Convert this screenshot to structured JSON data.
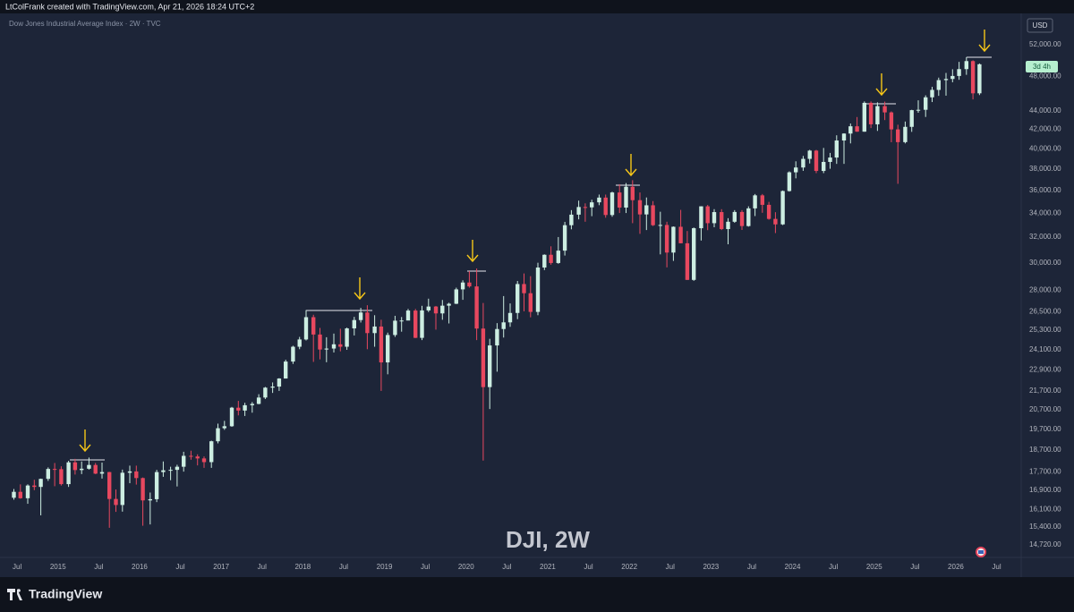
{
  "chart_data": {
    "type": "candlestick",
    "credit": "LtColFrank created with TradingView.com, Apr 21, 2026 18:24 UTC+2",
    "title": "Dow Jones Industrial Average Index · 2W · TVC",
    "annotation": "DJI, 2W",
    "currency": "USD",
    "countdown": "3d 4h",
    "brand": "TradingView",
    "log_scale": true,
    "grid": false,
    "up_color": "#cdeee2",
    "down_color": "#e8485f",
    "xlim": [
      2014.29,
      2026.79
    ],
    "ylim": [
      14295,
      56150
    ],
    "xticks": [
      {
        "value": 2014.5,
        "label": "Jul"
      },
      {
        "value": 2015,
        "label": "2015"
      },
      {
        "value": 2015.5,
        "label": "Jul"
      },
      {
        "value": 2016,
        "label": "2016"
      },
      {
        "value": 2016.5,
        "label": "Jul"
      },
      {
        "value": 2017,
        "label": "2017"
      },
      {
        "value": 2017.5,
        "label": "Jul"
      },
      {
        "value": 2018,
        "label": "2018"
      },
      {
        "value": 2018.5,
        "label": "Jul"
      },
      {
        "value": 2019,
        "label": "2019"
      },
      {
        "value": 2019.5,
        "label": "Jul"
      },
      {
        "value": 2020,
        "label": "2020"
      },
      {
        "value": 2020.5,
        "label": "Jul"
      },
      {
        "value": 2021,
        "label": "2021"
      },
      {
        "value": 2021.5,
        "label": "Jul"
      },
      {
        "value": 2022,
        "label": "2022"
      },
      {
        "value": 2022.5,
        "label": "Jul"
      },
      {
        "value": 2023,
        "label": "2023"
      },
      {
        "value": 2023.5,
        "label": "Jul"
      },
      {
        "value": 2024,
        "label": "2024"
      },
      {
        "value": 2024.5,
        "label": "Jul"
      },
      {
        "value": 2025,
        "label": "2025"
      },
      {
        "value": 2025.5,
        "label": "Jul"
      },
      {
        "value": 2026,
        "label": "2026"
      },
      {
        "value": 2026.5,
        "label": "Jul"
      }
    ],
    "yticks": [
      {
        "value": 52000,
        "label": "52,000.00"
      },
      {
        "value": 48000,
        "label": "48,000.00"
      },
      {
        "value": 44000,
        "label": "44,000.00"
      },
      {
        "value": 42000,
        "label": "42,000.00"
      },
      {
        "value": 40000,
        "label": "40,000.00"
      },
      {
        "value": 38000,
        "label": "38,000.00"
      },
      {
        "value": 36000,
        "label": "36,000.00"
      },
      {
        "value": 34000,
        "label": "34,000.00"
      },
      {
        "value": 32000,
        "label": "32,000.00"
      },
      {
        "value": 30000,
        "label": "30,000.00"
      },
      {
        "value": 28000,
        "label": "28,000.00"
      },
      {
        "value": 26500,
        "label": "26,500.00"
      },
      {
        "value": 25300,
        "label": "25,300.00"
      },
      {
        "value": 24100,
        "label": "24,100.00"
      },
      {
        "value": 22900,
        "label": "22,900.00"
      },
      {
        "value": 21700,
        "label": "21,700.00"
      },
      {
        "value": 20700,
        "label": "20,700.00"
      },
      {
        "value": 19700,
        "label": "19,700.00"
      },
      {
        "value": 18700,
        "label": "18,700.00"
      },
      {
        "value": 17700,
        "label": "17,700.00"
      },
      {
        "value": 16900,
        "label": "16,900.00"
      },
      {
        "value": 16100,
        "label": "16,100.00"
      },
      {
        "value": 15400,
        "label": "15,400.00"
      },
      {
        "value": 14720,
        "label": "14,720.00"
      }
    ],
    "x": [
      2014.46,
      2014.54,
      2014.63,
      2014.71,
      2014.79,
      2014.88,
      2014.96,
      2015.04,
      2015.13,
      2015.21,
      2015.29,
      2015.38,
      2015.46,
      2015.54,
      2015.63,
      2015.71,
      2015.79,
      2015.88,
      2015.96,
      2016.04,
      2016.13,
      2016.21,
      2016.29,
      2016.38,
      2016.46,
      2016.54,
      2016.63,
      2016.71,
      2016.79,
      2016.88,
      2016.96,
      2017.04,
      2017.13,
      2017.21,
      2017.29,
      2017.38,
      2017.46,
      2017.54,
      2017.63,
      2017.71,
      2017.79,
      2017.88,
      2017.96,
      2018.04,
      2018.13,
      2018.21,
      2018.29,
      2018.38,
      2018.46,
      2018.54,
      2018.63,
      2018.71,
      2018.79,
      2018.88,
      2018.96,
      2019.04,
      2019.13,
      2019.21,
      2019.29,
      2019.38,
      2019.46,
      2019.54,
      2019.63,
      2019.71,
      2019.79,
      2019.88,
      2019.96,
      2020.04,
      2020.13,
      2020.21,
      2020.29,
      2020.38,
      2020.46,
      2020.54,
      2020.63,
      2020.71,
      2020.79,
      2020.88,
      2020.96,
      2021.04,
      2021.13,
      2021.21,
      2021.29,
      2021.38,
      2021.46,
      2021.54,
      2021.63,
      2021.71,
      2021.79,
      2021.88,
      2021.96,
      2022.04,
      2022.13,
      2022.21,
      2022.29,
      2022.38,
      2022.46,
      2022.54,
      2022.63,
      2022.71,
      2022.79,
      2022.88,
      2022.96,
      2023.04,
      2023.13,
      2023.21,
      2023.29,
      2023.38,
      2023.46,
      2023.54,
      2023.63,
      2023.71,
      2023.79,
      2023.88,
      2023.96,
      2024.04,
      2024.13,
      2024.21,
      2024.29,
      2024.38,
      2024.46,
      2024.54,
      2024.63,
      2024.71,
      2024.79,
      2024.88,
      2024.96,
      2025.04,
      2025.13,
      2025.21,
      2025.29,
      2025.38,
      2025.46,
      2025.54,
      2025.63,
      2025.71,
      2025.79,
      2025.88,
      2025.96,
      2026.04,
      2026.13,
      2026.21,
      2026.29
    ],
    "ohlc": [
      [
        16580,
        16950,
        16500,
        16830
      ],
      [
        16830,
        17150,
        16540,
        16560
      ],
      [
        16560,
        17150,
        16330,
        17100
      ],
      [
        17100,
        17350,
        16900,
        17040
      ],
      [
        17040,
        17400,
        15860,
        17390
      ],
      [
        17390,
        17900,
        17300,
        17830
      ],
      [
        17830,
        18100,
        17070,
        17820
      ],
      [
        17820,
        17950,
        17100,
        17160
      ],
      [
        17160,
        18200,
        17040,
        18130
      ],
      [
        18130,
        18290,
        17580,
        17780
      ],
      [
        17780,
        18170,
        17600,
        17840
      ],
      [
        17840,
        18350,
        17800,
        18010
      ],
      [
        18010,
        18100,
        17600,
        17620
      ],
      [
        17620,
        18120,
        17400,
        17690
      ],
      [
        17690,
        17700,
        15370,
        16530
      ],
      [
        16530,
        16930,
        16000,
        16280
      ],
      [
        16280,
        17800,
        16010,
        17660
      ],
      [
        17660,
        17980,
        17200,
        17720
      ],
      [
        17720,
        17980,
        17140,
        17425
      ],
      [
        17425,
        17450,
        15450,
        16470
      ],
      [
        16470,
        16800,
        15500,
        16520
      ],
      [
        16520,
        17790,
        16400,
        17690
      ],
      [
        17690,
        18170,
        17480,
        17770
      ],
      [
        17770,
        17930,
        17330,
        17790
      ],
      [
        17790,
        18020,
        17060,
        17930
      ],
      [
        17930,
        18620,
        17710,
        18430
      ],
      [
        18430,
        18670,
        18250,
        18400
      ],
      [
        18400,
        18500,
        17990,
        18310
      ],
      [
        18310,
        18400,
        17880,
        18140
      ],
      [
        18140,
        19150,
        17880,
        19120
      ],
      [
        19120,
        19990,
        19020,
        19760
      ],
      [
        19760,
        20130,
        19680,
        19860
      ],
      [
        19860,
        20850,
        19830,
        20810
      ],
      [
        20810,
        21170,
        20410,
        20660
      ],
      [
        20660,
        21070,
        20380,
        20940
      ],
      [
        20940,
        21110,
        20550,
        21010
      ],
      [
        21010,
        21530,
        20990,
        21350
      ],
      [
        21350,
        21930,
        21270,
        21890
      ],
      [
        21890,
        22180,
        21600,
        21950
      ],
      [
        21950,
        22420,
        21710,
        22400
      ],
      [
        22400,
        23490,
        22400,
        23380
      ],
      [
        23380,
        24330,
        23240,
        24270
      ],
      [
        24270,
        24880,
        24120,
        24720
      ],
      [
        24720,
        26620,
        24660,
        26150
      ],
      [
        26150,
        26310,
        23360,
        25030
      ],
      [
        25030,
        25450,
        23510,
        24100
      ],
      [
        24100,
        24860,
        23340,
        24160
      ],
      [
        24160,
        25090,
        23920,
        24420
      ],
      [
        24420,
        25400,
        23990,
        24270
      ],
      [
        24270,
        25470,
        24080,
        25420
      ],
      [
        25420,
        26170,
        24970,
        25960
      ],
      [
        25960,
        26770,
        25800,
        26460
      ],
      [
        26460,
        26950,
        24120,
        25120
      ],
      [
        25120,
        26280,
        24270,
        25540
      ],
      [
        25540,
        25980,
        21710,
        23330
      ],
      [
        23330,
        25150,
        22640,
        25000
      ],
      [
        25000,
        26240,
        24880,
        25920
      ],
      [
        25920,
        26160,
        25210,
        25930
      ],
      [
        25930,
        26700,
        25970,
        26590
      ],
      [
        26590,
        26700,
        24810,
        24820
      ],
      [
        24820,
        26910,
        24680,
        26600
      ],
      [
        26600,
        27400,
        26490,
        26860
      ],
      [
        26860,
        26900,
        25340,
        26400
      ],
      [
        26400,
        27310,
        25980,
        26920
      ],
      [
        26920,
        27120,
        25740,
        27050
      ],
      [
        27050,
        28170,
        27030,
        28050
      ],
      [
        28050,
        28700,
        27320,
        28540
      ],
      [
        28540,
        29370,
        28170,
        28260
      ],
      [
        28260,
        29570,
        24680,
        25410
      ],
      [
        25410,
        27100,
        18210,
        21920
      ],
      [
        21920,
        24760,
        20740,
        24350
      ],
      [
        24350,
        25760,
        22790,
        25380
      ],
      [
        25380,
        27580,
        24840,
        25810
      ],
      [
        25810,
        27070,
        25520,
        26430
      ],
      [
        26430,
        28650,
        26020,
        28430
      ],
      [
        28430,
        29200,
        26540,
        27780
      ],
      [
        27780,
        29000,
        26140,
        26500
      ],
      [
        26500,
        30000,
        26280,
        29640
      ],
      [
        29640,
        30640,
        29450,
        30610
      ],
      [
        30610,
        31270,
        29850,
        29980
      ],
      [
        29980,
        32010,
        29920,
        30930
      ],
      [
        30930,
        33260,
        30550,
        32980
      ],
      [
        32980,
        34260,
        32640,
        33870
      ],
      [
        33870,
        35090,
        33470,
        34530
      ],
      [
        34530,
        34850,
        33270,
        34500
      ],
      [
        34500,
        35170,
        33740,
        34940
      ],
      [
        34940,
        35630,
        34690,
        35360
      ],
      [
        35360,
        35630,
        33610,
        33840
      ],
      [
        33840,
        35890,
        33690,
        35820
      ],
      [
        35820,
        36570,
        34010,
        34480
      ],
      [
        34480,
        36680,
        34010,
        36340
      ],
      [
        36340,
        36950,
        33150,
        35130
      ],
      [
        35130,
        35820,
        32270,
        33890
      ],
      [
        33890,
        35370,
        32580,
        34680
      ],
      [
        34680,
        35050,
        32910,
        32980
      ],
      [
        32980,
        34120,
        30640,
        33000
      ],
      [
        33000,
        33270,
        29650,
        30780
      ],
      [
        30780,
        32880,
        30140,
        32850
      ],
      [
        32850,
        34280,
        31510,
        31510
      ],
      [
        31510,
        32500,
        28720,
        28730
      ],
      [
        28730,
        32790,
        28660,
        32730
      ],
      [
        32730,
        34590,
        31730,
        34590
      ],
      [
        34590,
        34710,
        32570,
        33150
      ],
      [
        33150,
        34340,
        32810,
        34090
      ],
      [
        34090,
        34340,
        32580,
        32660
      ],
      [
        32660,
        33570,
        31430,
        33270
      ],
      [
        33270,
        34260,
        33180,
        34100
      ],
      [
        34100,
        34260,
        32590,
        32910
      ],
      [
        32910,
        34590,
        32860,
        34410
      ],
      [
        34410,
        35680,
        33750,
        35560
      ],
      [
        35560,
        35680,
        34030,
        34720
      ],
      [
        34720,
        34980,
        33440,
        33510
      ],
      [
        33510,
        34080,
        32330,
        33050
      ],
      [
        33050,
        36000,
        32990,
        35950
      ],
      [
        35950,
        37780,
        35900,
        37690
      ],
      [
        37690,
        38750,
        37120,
        38150
      ],
      [
        38150,
        39280,
        37830,
        38990
      ],
      [
        38990,
        39890,
        38540,
        39810
      ],
      [
        39810,
        39890,
        37610,
        37820
      ],
      [
        37820,
        40080,
        37610,
        38690
      ],
      [
        38690,
        39580,
        38030,
        39120
      ],
      [
        39120,
        41380,
        38500,
        40840
      ],
      [
        40840,
        41590,
        38500,
        41560
      ],
      [
        41560,
        42630,
        40540,
        42330
      ],
      [
        42330,
        43330,
        41740,
        41760
      ],
      [
        41760,
        45070,
        41750,
        44910
      ],
      [
        44910,
        45070,
        42140,
        42540
      ],
      [
        42540,
        44970,
        41840,
        44540
      ],
      [
        44540,
        45050,
        43000,
        43840
      ],
      [
        43840,
        43950,
        40660,
        42000
      ],
      [
        42000,
        42500,
        36610,
        40670
      ],
      [
        40670,
        42840,
        40540,
        42270
      ],
      [
        42270,
        44130,
        41740,
        44090
      ],
      [
        44090,
        45200,
        43800,
        44130
      ],
      [
        44130,
        45770,
        43340,
        45540
      ],
      [
        45540,
        46760,
        45000,
        46400
      ],
      [
        46400,
        47860,
        45710,
        47560
      ],
      [
        47560,
        48430,
        45730,
        47700
      ],
      [
        47700,
        48880,
        47300,
        48060
      ],
      [
        48060,
        49800,
        47600,
        48900
      ],
      [
        48900,
        50400,
        48200,
        49900
      ],
      [
        49900,
        50000,
        45300,
        46000
      ],
      [
        46000,
        49600,
        45800,
        49500
      ]
    ]
  }
}
